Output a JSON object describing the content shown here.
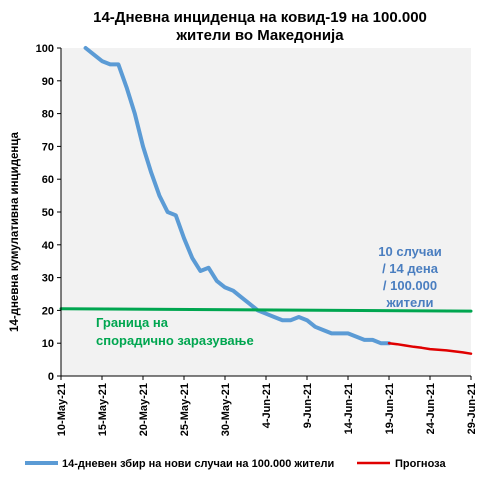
{
  "chart_data": {
    "type": "line",
    "title_lines": [
      "14-Дневна инциденца на ковид-19 на 100.000",
      "жители во Македонија"
    ],
    "ylabel": "14-дневна кумулативна инциденца",
    "xlabel": "",
    "ylim": [
      0,
      100
    ],
    "yticks": [
      0,
      10,
      20,
      30,
      40,
      50,
      60,
      70,
      80,
      90,
      100
    ],
    "xlim": [
      "2021-05-10",
      "2021-06-29"
    ],
    "xtick_dates": [
      "2021-05-10",
      "2021-05-15",
      "2021-05-20",
      "2021-05-25",
      "2021-05-30",
      "2021-06-04",
      "2021-06-09",
      "2021-06-14",
      "2021-06-19",
      "2021-06-24",
      "2021-06-29"
    ],
    "xtick_labels": [
      "10-May-21",
      "15-May-21",
      "20-May-21",
      "25-May-21",
      "30-May-21",
      "4-Jun-21",
      "9-Jun-21",
      "14-Jun-21",
      "19-Jun-21",
      "24-Jun-21",
      "29-Jun-21"
    ],
    "grid": false,
    "legend_position": "bottom",
    "series": [
      {
        "name": "14-дневен збир на нови случаи на 100.000 жители",
        "color": "#5b9bd5",
        "x": [
          "2021-05-13",
          "2021-05-14",
          "2021-05-15",
          "2021-05-16",
          "2021-05-17",
          "2021-05-18",
          "2021-05-19",
          "2021-05-20",
          "2021-05-21",
          "2021-05-22",
          "2021-05-23",
          "2021-05-24",
          "2021-05-25",
          "2021-05-26",
          "2021-05-27",
          "2021-05-28",
          "2021-05-29",
          "2021-05-30",
          "2021-05-31",
          "2021-06-01",
          "2021-06-02",
          "2021-06-03",
          "2021-06-04",
          "2021-06-05",
          "2021-06-06",
          "2021-06-07",
          "2021-06-08",
          "2021-06-09",
          "2021-06-10",
          "2021-06-11",
          "2021-06-12",
          "2021-06-13",
          "2021-06-14",
          "2021-06-15",
          "2021-06-16",
          "2021-06-17",
          "2021-06-18",
          "2021-06-19"
        ],
        "y": [
          100,
          98,
          96,
          95,
          95,
          88,
          80,
          70,
          62,
          55,
          50,
          49,
          42,
          36,
          32,
          33,
          29,
          27,
          26,
          24,
          22,
          20,
          19,
          18,
          17,
          17,
          18,
          17,
          15,
          14,
          13,
          13,
          13,
          12,
          11,
          11,
          10,
          10
        ]
      },
      {
        "name": "Прогноза",
        "color": "#e00000",
        "x": [
          "2021-06-19",
          "2021-06-20",
          "2021-06-21",
          "2021-06-22",
          "2021-06-23",
          "2021-06-24",
          "2021-06-25",
          "2021-06-26",
          "2021-06-27",
          "2021-06-28",
          "2021-06-29"
        ],
        "y": [
          10,
          9.7,
          9.3,
          8.9,
          8.6,
          8.2,
          8.0,
          7.8,
          7.5,
          7.2,
          6.8
        ]
      },
      {
        "name": "",
        "color": "#00a650",
        "x": [
          "2021-05-10",
          "2021-06-29"
        ],
        "y": [
          20.5,
          19.8
        ]
      }
    ],
    "annotations": [
      {
        "text_lines": [
          "10 случаи",
          "/ 14 дена",
          "/ 100.000",
          "жители"
        ],
        "color": "#4a7ec0"
      },
      {
        "text_lines": [
          "Граница на",
          "спорадично заразување"
        ],
        "color": "#00a650"
      }
    ]
  }
}
